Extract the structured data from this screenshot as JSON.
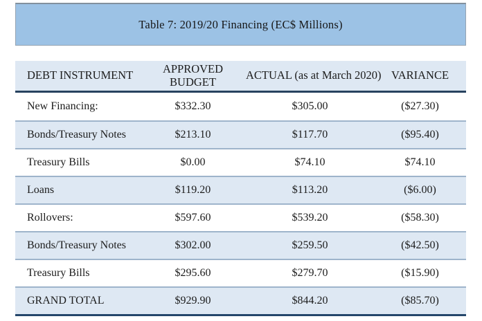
{
  "title_bar": {
    "text": "Table 7: 2019/20 Financing (EC$ Millions)"
  },
  "colors": {
    "title_bar_bg": "#9CC2E5",
    "header_bg": "#DEE8F3",
    "shaded_row_bg": "#DEE8F3",
    "row_separator": "#9EB4CB",
    "dark_border": "#24466B",
    "text": "#1c1c1c"
  },
  "table": {
    "columns": [
      "DEBT INSTRUMENT",
      "APPROVED BUDGET",
      "ACTUAL (as at March 2020)",
      "VARIANCE"
    ],
    "rows": [
      {
        "instrument": "New Financing:",
        "approved": "$332.30",
        "actual": "$305.00",
        "variance": "($27.30)"
      },
      {
        "instrument": "Bonds/Treasury Notes",
        "approved": "$213.10",
        "actual": "$117.70",
        "variance": "($95.40)"
      },
      {
        "instrument": "Treasury Bills",
        "approved": "$0.00",
        "actual": "$74.10",
        "variance": "$74.10"
      },
      {
        "instrument": "Loans",
        "approved": "$119.20",
        "actual": "$113.20",
        "variance": "($6.00)"
      },
      {
        "instrument": "Rollovers:",
        "approved": "$597.60",
        "actual": "$539.20",
        "variance": "($58.30)"
      },
      {
        "instrument": "Bonds/Treasury Notes",
        "approved": "$302.00",
        "actual": "$259.50",
        "variance": "($42.50)"
      },
      {
        "instrument": "Treasury Bills",
        "approved": "$295.60",
        "actual": "$279.70",
        "variance": "($15.90)"
      },
      {
        "instrument": "GRAND TOTAL",
        "approved": "$929.90",
        "actual": "$844.20",
        "variance": "($85.70)"
      }
    ]
  }
}
